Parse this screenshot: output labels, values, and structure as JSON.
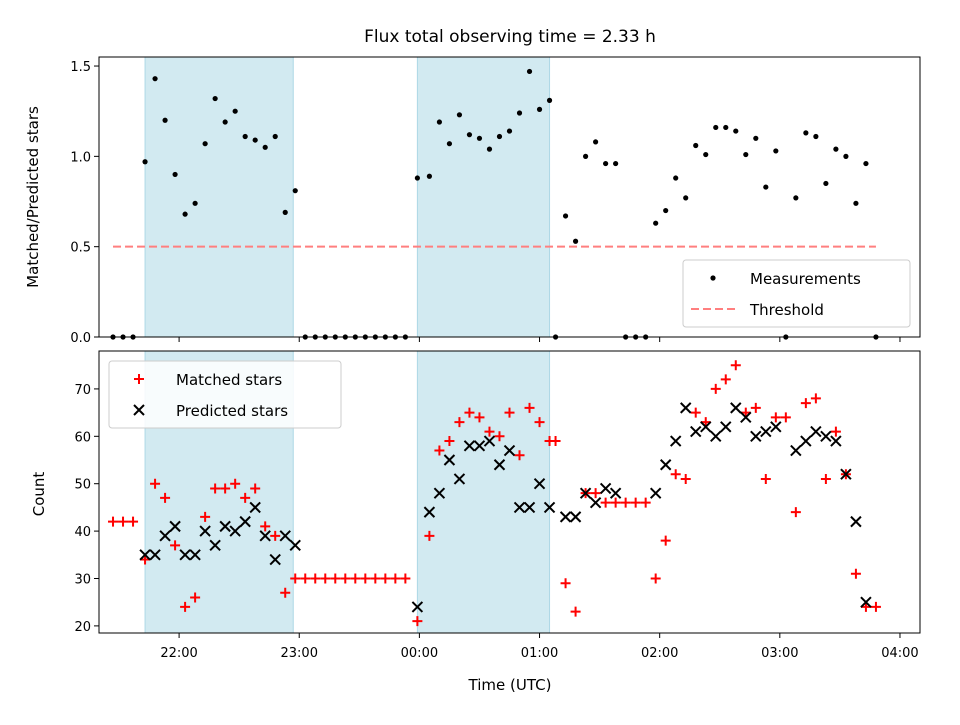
{
  "chart_data": {
    "title": "Flux total observing time = 2.33 h",
    "xlabel": "Time (UTC)",
    "x_ticks": [
      "22:00",
      "23:00",
      "00:00",
      "01:00",
      "02:00",
      "03:00",
      "04:00"
    ],
    "shaded_intervals": [
      [
        "21:43",
        "22:57"
      ],
      [
        "23:59",
        "01:05"
      ]
    ],
    "colors": {
      "shade": "#add8e6",
      "measure": "#000000",
      "threshold": "#ff7f7f",
      "matched": "#ff0000",
      "predicted": "#000000"
    },
    "panels": [
      {
        "type": "scatter",
        "ylabel": "Matched/Predicted stars",
        "ylim": [
          0,
          1.55
        ],
        "y_ticks": [
          0.0,
          0.5,
          1.0,
          1.5
        ],
        "y_tick_labels": [
          "0.0",
          "0.5",
          "1.0",
          "1.5"
        ],
        "legend": "lower-right",
        "series": [
          {
            "name": "Measurements",
            "kind": "dot",
            "points": [
              [
                "21:27",
                0
              ],
              [
                "21:32",
                0
              ],
              [
                "21:37",
                0
              ],
              [
                "21:43",
                0.97
              ],
              [
                "21:48",
                1.43
              ],
              [
                "21:53",
                1.2
              ],
              [
                "21:58",
                0.9
              ],
              [
                "22:03",
                0.68
              ],
              [
                "22:08",
                0.74
              ],
              [
                "22:13",
                1.07
              ],
              [
                "22:18",
                1.32
              ],
              [
                "22:23",
                1.19
              ],
              [
                "22:28",
                1.25
              ],
              [
                "22:33",
                1.11
              ],
              [
                "22:38",
                1.09
              ],
              [
                "22:43",
                1.05
              ],
              [
                "22:48",
                1.11
              ],
              [
                "22:53",
                0.69
              ],
              [
                "22:58",
                0.81
              ],
              [
                "23:03",
                0
              ],
              [
                "23:08",
                0
              ],
              [
                "23:13",
                0
              ],
              [
                "23:18",
                0
              ],
              [
                "23:23",
                0
              ],
              [
                "23:28",
                0
              ],
              [
                "23:33",
                0
              ],
              [
                "23:38",
                0
              ],
              [
                "23:43",
                0
              ],
              [
                "23:48",
                0
              ],
              [
                "23:53",
                0
              ],
              [
                "23:59",
                0.88
              ],
              [
                "00:05",
                0.89
              ],
              [
                "00:10",
                1.19
              ],
              [
                "00:15",
                1.07
              ],
              [
                "00:20",
                1.23
              ],
              [
                "00:25",
                1.12
              ],
              [
                "00:30",
                1.1
              ],
              [
                "00:35",
                1.04
              ],
              [
                "00:40",
                1.11
              ],
              [
                "00:45",
                1.14
              ],
              [
                "00:50",
                1.24
              ],
              [
                "00:55",
                1.47
              ],
              [
                "01:00",
                1.26
              ],
              [
                "01:05",
                1.31
              ],
              [
                "01:08",
                0
              ],
              [
                "01:13",
                0.67
              ],
              [
                "01:18",
                0.53
              ],
              [
                "01:23",
                1.0
              ],
              [
                "01:28",
                1.08
              ],
              [
                "01:33",
                0.96
              ],
              [
                "01:38",
                0.96
              ],
              [
                "01:43",
                0
              ],
              [
                "01:48",
                0
              ],
              [
                "01:53",
                0
              ],
              [
                "01:58",
                0.63
              ],
              [
                "02:03",
                0.7
              ],
              [
                "02:08",
                0.88
              ],
              [
                "02:13",
                0.77
              ],
              [
                "02:18",
                1.06
              ],
              [
                "02:23",
                1.01
              ],
              [
                "02:28",
                1.16
              ],
              [
                "02:33",
                1.16
              ],
              [
                "02:38",
                1.14
              ],
              [
                "02:43",
                1.01
              ],
              [
                "02:48",
                1.1
              ],
              [
                "02:53",
                0.83
              ],
              [
                "02:58",
                1.03
              ],
              [
                "03:03",
                0
              ],
              [
                "03:08",
                0.77
              ],
              [
                "03:13",
                1.13
              ],
              [
                "03:18",
                1.11
              ],
              [
                "03:23",
                0.85
              ],
              [
                "03:28",
                1.04
              ],
              [
                "03:33",
                1.0
              ],
              [
                "03:38",
                0.74
              ],
              [
                "03:43",
                0.96
              ],
              [
                "03:48",
                0
              ]
            ]
          },
          {
            "name": "Threshold",
            "kind": "dashed",
            "value": 0.5,
            "x_range": [
              "21:27",
              "03:48"
            ]
          }
        ]
      },
      {
        "type": "scatter",
        "ylabel": "Count",
        "ylim": [
          18.5,
          78
        ],
        "y_ticks": [
          20,
          30,
          40,
          50,
          60,
          70
        ],
        "y_tick_labels": [
          "20",
          "30",
          "40",
          "50",
          "60",
          "70"
        ],
        "legend": "upper-left",
        "series": [
          {
            "name": "Matched stars",
            "kind": "plus",
            "points": [
              [
                "21:27",
                42
              ],
              [
                "21:32",
                42
              ],
              [
                "21:37",
                42
              ],
              [
                "21:43",
                34
              ],
              [
                "21:48",
                50
              ],
              [
                "21:53",
                47
              ],
              [
                "21:58",
                37
              ],
              [
                "22:03",
                24
              ],
              [
                "22:08",
                26
              ],
              [
                "22:13",
                43
              ],
              [
                "22:18",
                49
              ],
              [
                "22:23",
                49
              ],
              [
                "22:28",
                50
              ],
              [
                "22:33",
                47
              ],
              [
                "22:38",
                49
              ],
              [
                "22:43",
                41
              ],
              [
                "22:48",
                39
              ],
              [
                "22:53",
                27
              ],
              [
                "22:58",
                30
              ],
              [
                "23:03",
                30
              ],
              [
                "23:08",
                30
              ],
              [
                "23:13",
                30
              ],
              [
                "23:18",
                30
              ],
              [
                "23:23",
                30
              ],
              [
                "23:28",
                30
              ],
              [
                "23:33",
                30
              ],
              [
                "23:38",
                30
              ],
              [
                "23:43",
                30
              ],
              [
                "23:48",
                30
              ],
              [
                "23:53",
                30
              ],
              [
                "23:59",
                21
              ],
              [
                "00:05",
                39
              ],
              [
                "00:10",
                57
              ],
              [
                "00:15",
                59
              ],
              [
                "00:20",
                63
              ],
              [
                "00:25",
                65
              ],
              [
                "00:30",
                64
              ],
              [
                "00:35",
                61
              ],
              [
                "00:40",
                60
              ],
              [
                "00:45",
                65
              ],
              [
                "00:50",
                56
              ],
              [
                "00:55",
                66
              ],
              [
                "01:00",
                63
              ],
              [
                "01:05",
                59
              ],
              [
                "01:08",
                59
              ],
              [
                "01:13",
                29
              ],
              [
                "01:18",
                23
              ],
              [
                "01:23",
                48
              ],
              [
                "01:28",
                48
              ],
              [
                "01:33",
                46
              ],
              [
                "01:38",
                46
              ],
              [
                "01:43",
                46
              ],
              [
                "01:48",
                46
              ],
              [
                "01:53",
                46
              ],
              [
                "01:58",
                30
              ],
              [
                "02:03",
                38
              ],
              [
                "02:08",
                52
              ],
              [
                "02:13",
                51
              ],
              [
                "02:18",
                65
              ],
              [
                "02:23",
                63
              ],
              [
                "02:28",
                70
              ],
              [
                "02:33",
                72
              ],
              [
                "02:38",
                75
              ],
              [
                "02:43",
                65
              ],
              [
                "02:48",
                66
              ],
              [
                "02:53",
                51
              ],
              [
                "02:58",
                64
              ],
              [
                "03:03",
                64
              ],
              [
                "03:08",
                44
              ],
              [
                "03:13",
                67
              ],
              [
                "03:18",
                68
              ],
              [
                "03:23",
                51
              ],
              [
                "03:28",
                61
              ],
              [
                "03:33",
                52
              ],
              [
                "03:38",
                31
              ],
              [
                "03:43",
                24
              ],
              [
                "03:48",
                24
              ]
            ]
          },
          {
            "name": "Predicted stars",
            "kind": "x",
            "points": [
              [
                "21:43",
                35
              ],
              [
                "21:48",
                35
              ],
              [
                "21:53",
                39
              ],
              [
                "21:58",
                41
              ],
              [
                "22:03",
                35
              ],
              [
                "22:08",
                35
              ],
              [
                "22:13",
                40
              ],
              [
                "22:18",
                37
              ],
              [
                "22:23",
                41
              ],
              [
                "22:28",
                40
              ],
              [
                "22:33",
                42
              ],
              [
                "22:38",
                45
              ],
              [
                "22:43",
                39
              ],
              [
                "22:48",
                34
              ],
              [
                "22:53",
                39
              ],
              [
                "22:58",
                37
              ],
              [
                "23:59",
                24
              ],
              [
                "00:05",
                44
              ],
              [
                "00:10",
                48
              ],
              [
                "00:15",
                55
              ],
              [
                "00:20",
                51
              ],
              [
                "00:25",
                58
              ],
              [
                "00:30",
                58
              ],
              [
                "00:35",
                59
              ],
              [
                "00:40",
                54
              ],
              [
                "00:45",
                57
              ],
              [
                "00:50",
                45
              ],
              [
                "00:55",
                45
              ],
              [
                "01:00",
                50
              ],
              [
                "01:05",
                45
              ],
              [
                "01:13",
                43
              ],
              [
                "01:18",
                43
              ],
              [
                "01:23",
                48
              ],
              [
                "01:28",
                46
              ],
              [
                "01:33",
                49
              ],
              [
                "01:38",
                48
              ],
              [
                "01:58",
                48
              ],
              [
                "02:03",
                54
              ],
              [
                "02:08",
                59
              ],
              [
                "02:13",
                66
              ],
              [
                "02:18",
                61
              ],
              [
                "02:23",
                62
              ],
              [
                "02:28",
                60
              ],
              [
                "02:33",
                62
              ],
              [
                "02:38",
                66
              ],
              [
                "02:43",
                64
              ],
              [
                "02:48",
                60
              ],
              [
                "02:53",
                61
              ],
              [
                "02:58",
                62
              ],
              [
                "03:08",
                57
              ],
              [
                "03:13",
                59
              ],
              [
                "03:18",
                61
              ],
              [
                "03:23",
                60
              ],
              [
                "03:28",
                59
              ],
              [
                "03:33",
                52
              ],
              [
                "03:38",
                42
              ],
              [
                "03:43",
                25
              ]
            ]
          }
        ]
      }
    ]
  }
}
